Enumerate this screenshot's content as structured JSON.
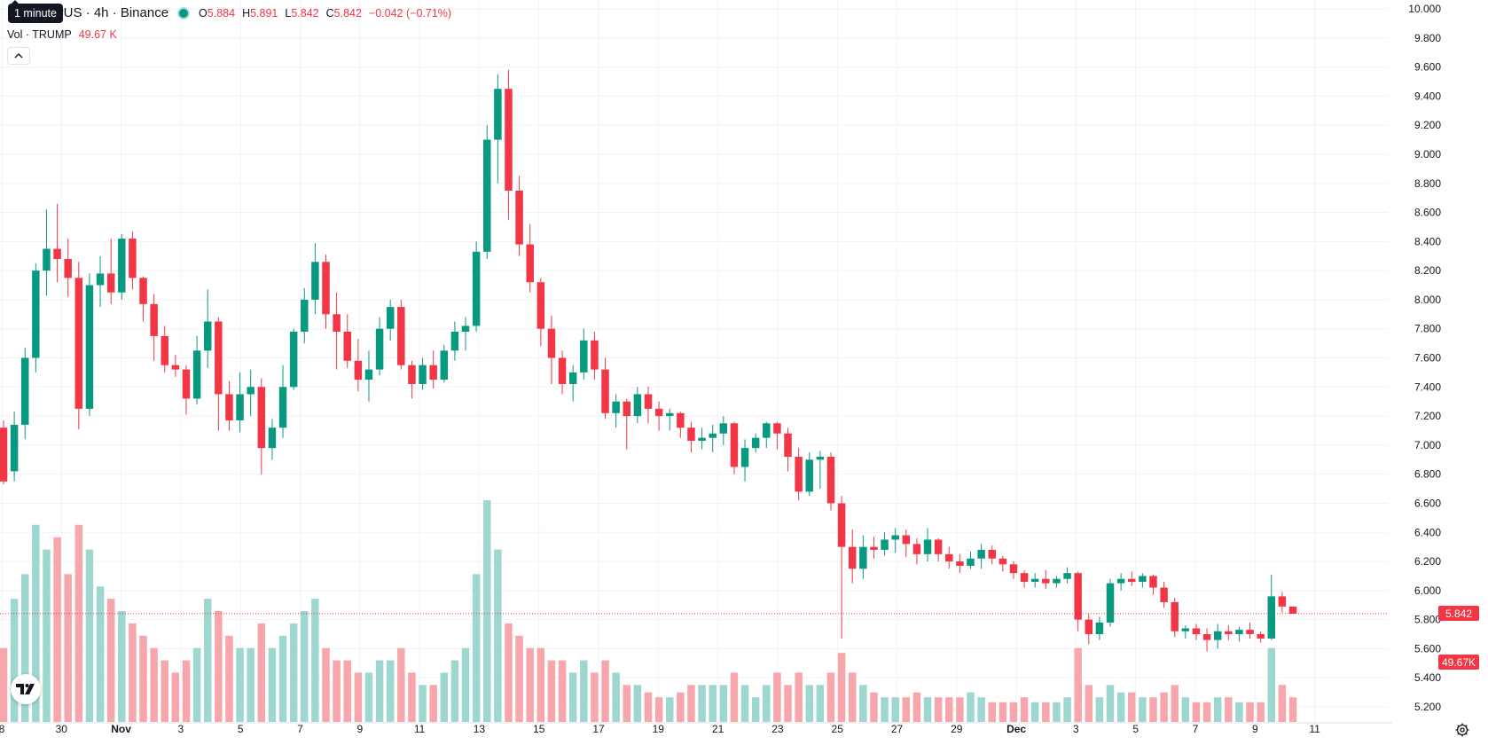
{
  "legend": {
    "symbol": "P / TetherUS · 4h · Binance",
    "open_key": "O",
    "open": "5.884",
    "high_key": "H",
    "high": "5.891",
    "low_key": "L",
    "low": "5.842",
    "close_key": "C",
    "close": "5.842",
    "change": "−0.042 (−0.71%)"
  },
  "volume_legend": {
    "label": "Vol · TRUMP",
    "value": "49.67 K"
  },
  "tooltip": {
    "text": "1 minute"
  },
  "current_price_label": "5.842",
  "current_volume_label": "49.67K",
  "colors": {
    "up": "#089981",
    "down": "#f23645",
    "up_volume": "#9ed7d0",
    "down_volume": "#f7a7ab"
  },
  "chart_data": {
    "type": "candlestick",
    "title": "",
    "y_axis": {
      "range": [
        5.2,
        10.0
      ],
      "ticks": [
        "10.000",
        "9.800",
        "9.600",
        "9.400",
        "9.200",
        "9.000",
        "8.800",
        "8.600",
        "8.400",
        "8.200",
        "8.000",
        "7.800",
        "7.600",
        "7.400",
        "7.200",
        "7.000",
        "6.800",
        "6.600",
        "6.400",
        "6.200",
        "6.000",
        "5.800",
        "5.600",
        "5.400",
        "5.200"
      ]
    },
    "x_axis": {
      "ticks": [
        "8",
        "30",
        "Nov",
        "3",
        "5",
        "7",
        "9",
        "11",
        "13",
        "15",
        "17",
        "19",
        "21",
        "23",
        "25",
        "27",
        "29",
        "Dec",
        "3",
        "5",
        "7",
        "9",
        "11"
      ]
    },
    "current_price": 5.842,
    "ohlc": [
      [
        7.12,
        7.17,
        6.73,
        6.75
      ],
      [
        6.82,
        7.23,
        6.75,
        7.14
      ],
      [
        7.14,
        7.67,
        7.04,
        7.6
      ],
      [
        7.6,
        8.25,
        7.5,
        8.2
      ],
      [
        8.2,
        8.62,
        8.03,
        8.35
      ],
      [
        8.35,
        8.66,
        8.12,
        8.28
      ],
      [
        8.28,
        8.42,
        8.02,
        8.15
      ],
      [
        8.15,
        8.26,
        7.11,
        7.25
      ],
      [
        7.25,
        8.18,
        7.2,
        8.1
      ],
      [
        8.1,
        8.3,
        7.95,
        8.18
      ],
      [
        8.18,
        8.42,
        7.97,
        8.05
      ],
      [
        8.05,
        8.45,
        8.0,
        8.42
      ],
      [
        8.42,
        8.47,
        8.07,
        8.15
      ],
      [
        8.15,
        8.16,
        7.85,
        7.97
      ],
      [
        7.97,
        8.04,
        7.58,
        7.75
      ],
      [
        7.75,
        7.82,
        7.5,
        7.55
      ],
      [
        7.55,
        7.62,
        7.47,
        7.52
      ],
      [
        7.52,
        7.55,
        7.21,
        7.32
      ],
      [
        7.32,
        7.75,
        7.28,
        7.65
      ],
      [
        7.65,
        8.07,
        7.53,
        7.85
      ],
      [
        7.85,
        7.88,
        7.1,
        7.35
      ],
      [
        7.35,
        7.44,
        7.1,
        7.17
      ],
      [
        7.17,
        7.5,
        7.09,
        7.35
      ],
      [
        7.35,
        7.52,
        7.2,
        7.4
      ],
      [
        7.4,
        7.46,
        6.8,
        6.98
      ],
      [
        6.98,
        7.18,
        6.9,
        7.12
      ],
      [
        7.12,
        7.55,
        7.05,
        7.4
      ],
      [
        7.4,
        7.8,
        7.38,
        7.78
      ],
      [
        7.78,
        8.08,
        7.7,
        8.0
      ],
      [
        8.0,
        8.39,
        7.9,
        8.26
      ],
      [
        8.26,
        8.31,
        7.8,
        7.9
      ],
      [
        7.9,
        8.05,
        7.52,
        7.78
      ],
      [
        7.78,
        7.9,
        7.53,
        7.58
      ],
      [
        7.58,
        7.73,
        7.37,
        7.45
      ],
      [
        7.45,
        7.65,
        7.3,
        7.52
      ],
      [
        7.52,
        7.88,
        7.48,
        7.8
      ],
      [
        7.8,
        8.0,
        7.72,
        7.95
      ],
      [
        7.95,
        8.0,
        7.52,
        7.55
      ],
      [
        7.55,
        7.58,
        7.32,
        7.42
      ],
      [
        7.42,
        7.6,
        7.38,
        7.55
      ],
      [
        7.55,
        7.65,
        7.39,
        7.45
      ],
      [
        7.45,
        7.69,
        7.43,
        7.65
      ],
      [
        7.65,
        7.85,
        7.58,
        7.78
      ],
      [
        7.78,
        7.88,
        7.65,
        7.82
      ],
      [
        7.82,
        8.4,
        7.78,
        8.33
      ],
      [
        8.33,
        9.2,
        8.28,
        9.1
      ],
      [
        9.1,
        9.55,
        8.8,
        9.45
      ],
      [
        9.45,
        9.58,
        8.55,
        8.75
      ],
      [
        8.75,
        8.85,
        8.3,
        8.38
      ],
      [
        8.38,
        8.52,
        8.05,
        8.12
      ],
      [
        8.12,
        8.15,
        7.68,
        7.8
      ],
      [
        7.8,
        7.89,
        7.42,
        7.6
      ],
      [
        7.6,
        7.65,
        7.35,
        7.42
      ],
      [
        7.42,
        7.55,
        7.3,
        7.5
      ],
      [
        7.5,
        7.8,
        7.45,
        7.72
      ],
      [
        7.72,
        7.78,
        7.45,
        7.52
      ],
      [
        7.52,
        7.6,
        7.18,
        7.22
      ],
      [
        7.22,
        7.35,
        7.12,
        7.3
      ],
      [
        7.3,
        7.32,
        6.97,
        7.2
      ],
      [
        7.2,
        7.4,
        7.15,
        7.35
      ],
      [
        7.35,
        7.4,
        7.15,
        7.25
      ],
      [
        7.25,
        7.3,
        7.1,
        7.2
      ],
      [
        7.2,
        7.25,
        7.1,
        7.22
      ],
      [
        7.22,
        7.23,
        7.05,
        7.12
      ],
      [
        7.12,
        7.16,
        6.95,
        7.03
      ],
      [
        7.03,
        7.12,
        6.97,
        7.05
      ],
      [
        7.05,
        7.14,
        6.95,
        7.08
      ],
      [
        7.08,
        7.2,
        7.0,
        7.15
      ],
      [
        7.15,
        7.16,
        6.8,
        6.85
      ],
      [
        6.85,
        7.04,
        6.75,
        6.98
      ],
      [
        6.98,
        7.08,
        6.95,
        7.05
      ],
      [
        7.05,
        7.16,
        6.98,
        7.15
      ],
      [
        7.15,
        7.16,
        6.97,
        7.08
      ],
      [
        7.08,
        7.12,
        6.82,
        6.92
      ],
      [
        6.92,
        6.98,
        6.62,
        6.68
      ],
      [
        6.68,
        6.95,
        6.65,
        6.9
      ],
      [
        6.9,
        6.96,
        6.7,
        6.92
      ],
      [
        6.92,
        6.95,
        6.55,
        6.6
      ],
      [
        6.6,
        6.65,
        5.67,
        6.3
      ],
      [
        6.3,
        6.42,
        6.05,
        6.15
      ],
      [
        6.15,
        6.38,
        6.08,
        6.3
      ],
      [
        6.3,
        6.37,
        6.22,
        6.28
      ],
      [
        6.28,
        6.4,
        6.24,
        6.35
      ],
      [
        6.35,
        6.43,
        6.26,
        6.38
      ],
      [
        6.38,
        6.42,
        6.23,
        6.32
      ],
      [
        6.32,
        6.36,
        6.18,
        6.25
      ],
      [
        6.25,
        6.43,
        6.2,
        6.35
      ],
      [
        6.35,
        6.36,
        6.2,
        6.25
      ],
      [
        6.25,
        6.3,
        6.15,
        6.2
      ],
      [
        6.2,
        6.25,
        6.12,
        6.17
      ],
      [
        6.17,
        6.27,
        6.15,
        6.22
      ],
      [
        6.22,
        6.32,
        6.15,
        6.28
      ],
      [
        6.28,
        6.31,
        6.18,
        6.22
      ],
      [
        6.22,
        6.24,
        6.13,
        6.18
      ],
      [
        6.18,
        6.2,
        6.08,
        6.12
      ],
      [
        6.12,
        6.14,
        6.02,
        6.06
      ],
      [
        6.06,
        6.12,
        6.02,
        6.08
      ],
      [
        6.08,
        6.14,
        6.01,
        6.05
      ],
      [
        6.05,
        6.1,
        6.02,
        6.08
      ],
      [
        6.08,
        6.16,
        6.05,
        6.12
      ],
      [
        6.12,
        6.13,
        5.72,
        5.8
      ],
      [
        5.8,
        5.84,
        5.63,
        5.7
      ],
      [
        5.7,
        5.82,
        5.66,
        5.78
      ],
      [
        5.78,
        6.08,
        5.75,
        6.05
      ],
      [
        6.05,
        6.12,
        6.0,
        6.08
      ],
      [
        6.08,
        6.13,
        6.03,
        6.06
      ],
      [
        6.06,
        6.12,
        6.02,
        6.1
      ],
      [
        6.1,
        6.11,
        5.97,
        6.02
      ],
      [
        6.02,
        6.06,
        5.88,
        5.92
      ],
      [
        5.92,
        5.95,
        5.68,
        5.72
      ],
      [
        5.72,
        5.76,
        5.67,
        5.74
      ],
      [
        5.74,
        5.77,
        5.66,
        5.7
      ],
      [
        5.7,
        5.74,
        5.58,
        5.66
      ],
      [
        5.66,
        5.77,
        5.6,
        5.72
      ],
      [
        5.72,
        5.76,
        5.66,
        5.7
      ],
      [
        5.7,
        5.75,
        5.65,
        5.73
      ],
      [
        5.73,
        5.78,
        5.67,
        5.7
      ],
      [
        5.7,
        5.72,
        5.64,
        5.67
      ],
      [
        5.67,
        6.11,
        5.66,
        5.96
      ],
      [
        5.96,
        5.99,
        5.85,
        5.89
      ],
      [
        5.89,
        5.89,
        5.84,
        5.84
      ]
    ],
    "volume": [
      0.3,
      0.5,
      0.6,
      0.8,
      0.7,
      0.75,
      0.6,
      0.8,
      0.7,
      0.55,
      0.5,
      0.45,
      0.4,
      0.35,
      0.3,
      0.25,
      0.2,
      0.25,
      0.3,
      0.5,
      0.45,
      0.35,
      0.3,
      0.3,
      0.4,
      0.3,
      0.35,
      0.4,
      0.45,
      0.5,
      0.3,
      0.25,
      0.25,
      0.2,
      0.2,
      0.25,
      0.25,
      0.3,
      0.2,
      0.15,
      0.15,
      0.2,
      0.25,
      0.3,
      0.6,
      0.9,
      0.7,
      0.4,
      0.35,
      0.3,
      0.3,
      0.25,
      0.25,
      0.2,
      0.25,
      0.2,
      0.25,
      0.2,
      0.15,
      0.15,
      0.12,
      0.1,
      0.1,
      0.12,
      0.15,
      0.15,
      0.15,
      0.15,
      0.2,
      0.15,
      0.1,
      0.15,
      0.2,
      0.15,
      0.2,
      0.15,
      0.15,
      0.2,
      0.28,
      0.2,
      0.15,
      0.12,
      0.1,
      0.1,
      0.1,
      0.12,
      0.1,
      0.1,
      0.1,
      0.1,
      0.12,
      0.1,
      0.08,
      0.08,
      0.08,
      0.1,
      0.08,
      0.08,
      0.08,
      0.1,
      0.3,
      0.15,
      0.1,
      0.15,
      0.12,
      0.12,
      0.1,
      0.1,
      0.12,
      0.15,
      0.1,
      0.08,
      0.08,
      0.1,
      0.1,
      0.08,
      0.08,
      0.08,
      0.3,
      0.15,
      0.1
    ]
  }
}
